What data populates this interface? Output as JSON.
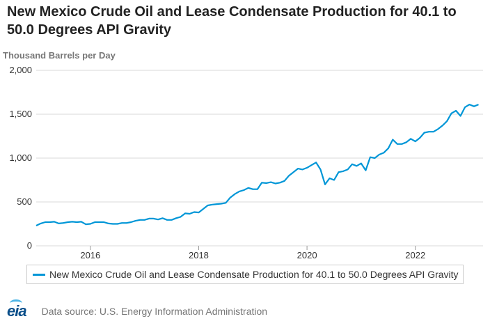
{
  "title": "New Mexico Crude Oil and Lease Condensate Production for 40.1 to 50.0 Degrees API Gravity",
  "units_label": "Thousand Barrels per Day",
  "source": "Data source: U.S. Energy Information Administration",
  "logo_text": "eia",
  "colors": {
    "series": "#0096d7",
    "grid": "#d9d9d9",
    "axis_text": "#333333"
  },
  "chart_data": {
    "type": "line",
    "title": "New Mexico Crude Oil and Lease Condensate Production for 40.1 to 50.0 Degrees API Gravity",
    "ylabel": "Thousand Barrels per Day",
    "xlabel": "",
    "ylim": [
      0,
      2000
    ],
    "yticks": [
      0,
      500,
      1000,
      1500,
      2000
    ],
    "ytick_labels": [
      "0",
      "500",
      "1,000",
      "1,500",
      "2,000"
    ],
    "xticks": [
      2016,
      2018,
      2020,
      2022
    ],
    "xtick_labels": [
      "2016",
      "2018",
      "2020",
      "2022"
    ],
    "grid": "horizontal",
    "legend": "bottom",
    "series": [
      {
        "name": "New Mexico Crude Oil and Lease Condensate Production for 40.1 to 50.0 Degrees API Gravity",
        "x": [
          "2015-01",
          "2015-02",
          "2015-03",
          "2015-04",
          "2015-05",
          "2015-06",
          "2015-07",
          "2015-08",
          "2015-09",
          "2015-10",
          "2015-11",
          "2015-12",
          "2016-01",
          "2016-02",
          "2016-03",
          "2016-04",
          "2016-05",
          "2016-06",
          "2016-07",
          "2016-08",
          "2016-09",
          "2016-10",
          "2016-11",
          "2016-12",
          "2017-01",
          "2017-02",
          "2017-03",
          "2017-04",
          "2017-05",
          "2017-06",
          "2017-07",
          "2017-08",
          "2017-09",
          "2017-10",
          "2017-11",
          "2017-12",
          "2018-01",
          "2018-02",
          "2018-03",
          "2018-04",
          "2018-05",
          "2018-06",
          "2018-07",
          "2018-08",
          "2018-09",
          "2018-10",
          "2018-11",
          "2018-12",
          "2019-01",
          "2019-02",
          "2019-03",
          "2019-04",
          "2019-05",
          "2019-06",
          "2019-07",
          "2019-08",
          "2019-09",
          "2019-10",
          "2019-11",
          "2019-12",
          "2020-01",
          "2020-02",
          "2020-03",
          "2020-04",
          "2020-05",
          "2020-06",
          "2020-07",
          "2020-08",
          "2020-09",
          "2020-10",
          "2020-11",
          "2020-12",
          "2021-01",
          "2021-02",
          "2021-03",
          "2021-04",
          "2021-05",
          "2021-06",
          "2021-07",
          "2021-08",
          "2021-09",
          "2021-10",
          "2021-11",
          "2021-12",
          "2022-01",
          "2022-02",
          "2022-03",
          "2022-04",
          "2022-05",
          "2022-06",
          "2022-07",
          "2022-08",
          "2022-09",
          "2022-10",
          "2022-11",
          "2022-12",
          "2023-01",
          "2023-02",
          "2023-03"
        ],
        "values": [
          230,
          255,
          270,
          270,
          275,
          255,
          260,
          270,
          275,
          270,
          275,
          245,
          250,
          270,
          270,
          270,
          255,
          250,
          250,
          260,
          260,
          270,
          285,
          295,
          295,
          310,
          310,
          300,
          315,
          295,
          295,
          315,
          330,
          370,
          365,
          385,
          380,
          420,
          460,
          470,
          475,
          480,
          490,
          550,
          590,
          620,
          635,
          660,
          645,
          645,
          720,
          715,
          725,
          710,
          720,
          740,
          800,
          840,
          880,
          870,
          890,
          920,
          950,
          870,
          700,
          770,
          750,
          840,
          850,
          870,
          930,
          910,
          940,
          860,
          1010,
          1000,
          1040,
          1060,
          1110,
          1210,
          1160,
          1160,
          1180,
          1220,
          1190,
          1230,
          1290,
          1300,
          1300,
          1330,
          1370,
          1420,
          1510,
          1540,
          1480,
          1580,
          1610,
          1590,
          1610
        ]
      }
    ]
  }
}
